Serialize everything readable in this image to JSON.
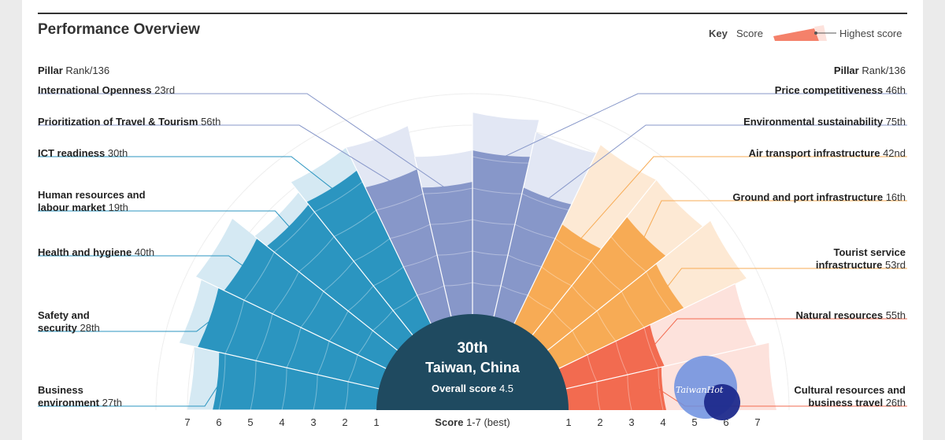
{
  "title": "Performance Overview",
  "key": {
    "label": "Key",
    "score": "Score",
    "highest": "Highest score"
  },
  "left_header": {
    "bold": "Pillar",
    "rest": "Rank/136"
  },
  "right_header": {
    "bold": "Pillar",
    "rest": "Rank/136"
  },
  "center": {
    "rank": "30th",
    "country": "Taiwan, China",
    "overall_label": "Overall score",
    "overall_value": "4.5"
  },
  "axis": {
    "label_bold": "Score",
    "label_rest": "1-7 (best)",
    "left_ticks": [
      "7",
      "6",
      "5",
      "4",
      "3",
      "2",
      "1"
    ],
    "right_ticks": [
      "1",
      "2",
      "3",
      "4",
      "5",
      "6",
      "7"
    ]
  },
  "watermark_text": "TaiwanHot",
  "colors": {
    "blue": "#2b95c0",
    "blue_light": "#d5e9f3",
    "violet": "#8797c9",
    "violet_light": "#e2e7f4",
    "orange": "#f7ab55",
    "orange_light": "#fde9d4",
    "coral": "#f26b50",
    "coral_light": "#fde2dc",
    "center": "#1f4a60"
  },
  "chart_data": {
    "type": "polar-bar",
    "overall_rank": "30th",
    "overall_score": 4.5,
    "scale": [
      1,
      7
    ],
    "pillars": [
      {
        "name": "Business environment",
        "label_lines": [
          "Business",
          "environment"
        ],
        "rank": "27th",
        "score": 5.2,
        "highest": 6.0,
        "side": "left",
        "group": "blue"
      },
      {
        "name": "Safety and security",
        "label_lines": [
          "Safety and",
          "security"
        ],
        "rank": "28th",
        "score": 5.9,
        "highest": 6.5,
        "side": "left",
        "group": "blue"
      },
      {
        "name": "Health and hygiene",
        "label_lines": [
          "Health and hygiene"
        ],
        "rank": "40th",
        "score": 5.7,
        "highest": 6.7,
        "side": "left",
        "group": "blue"
      },
      {
        "name": "Human resources and labour market",
        "label_lines": [
          "Human resources and",
          "labour market"
        ],
        "rank": "19th",
        "score": 5.3,
        "highest": 5.8,
        "side": "left",
        "group": "blue"
      },
      {
        "name": "ICT readiness",
        "label_lines": [
          "ICT readiness"
        ],
        "rank": "30th",
        "score": 5.4,
        "highest": 6.2,
        "side": "left",
        "group": "blue"
      },
      {
        "name": "Prioritization of Travel & Tourism",
        "label_lines": [
          "Prioritization of Travel & Tourism"
        ],
        "rank": "56th",
        "score": 4.8,
        "highest": 6.2,
        "side": "left",
        "group": "violet"
      },
      {
        "name": "International Openness",
        "label_lines": [
          "International Openness"
        ],
        "rank": "23rd",
        "score": 4.2,
        "highest": 5.2,
        "side": "left",
        "group": "violet"
      },
      {
        "name": "Price competitiveness",
        "label_lines": [
          "Price competitiveness"
        ],
        "rank": "46th",
        "score": 5.2,
        "highest": 6.4,
        "side": "right",
        "group": "violet"
      },
      {
        "name": "Environmental sustainability",
        "label_lines": [
          "Environmental sustainability"
        ],
        "rank": "75th",
        "score": 4.2,
        "highest": 6.0,
        "side": "right",
        "group": "violet"
      },
      {
        "name": "Air transport infrastructure",
        "label_lines": [
          "Air transport infrastructure"
        ],
        "rank": "42nd",
        "score": 3.5,
        "highest": 6.3,
        "side": "right",
        "group": "orange"
      },
      {
        "name": "Ground and port infrastructure",
        "label_lines": [
          "Ground and port infrastructure"
        ],
        "rank": "16th",
        "score": 4.8,
        "highest": 6.3,
        "side": "right",
        "group": "orange"
      },
      {
        "name": "Tourist service infrastructure",
        "label_lines": [
          "Tourist service",
          "infrastructure"
        ],
        "rank": "53rd",
        "score": 4.4,
        "highest": 6.6,
        "side": "right",
        "group": "orange"
      },
      {
        "name": "Natural resources",
        "label_lines": [
          "Natural resources"
        ],
        "rank": "55th",
        "score": 3.2,
        "highest": 6.2,
        "side": "right",
        "group": "coral"
      },
      {
        "name": "Cultural resources and business travel",
        "label_lines": [
          "Cultural resources and",
          "business travel"
        ],
        "rank": "26th",
        "score": 3.1,
        "highest": 6.6,
        "side": "right",
        "group": "coral"
      }
    ]
  }
}
